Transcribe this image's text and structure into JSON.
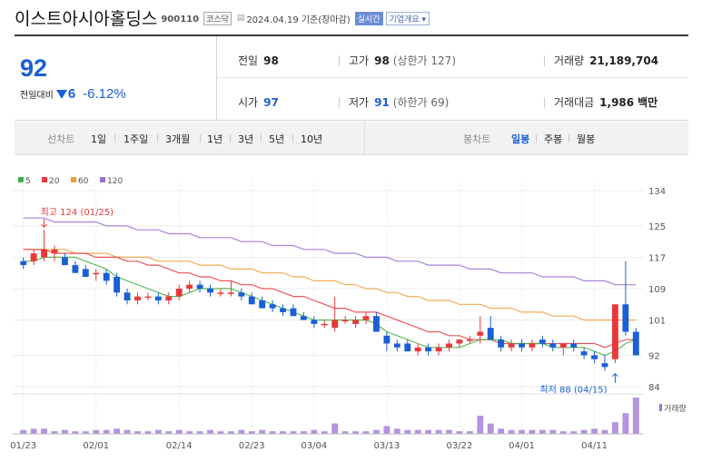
{
  "header": {
    "company_name": "이스트아시아홀딩스",
    "code": "900110",
    "market": "코스닥",
    "date": "2024.04.19 기준(장마감)",
    "realtime_label": "실시간",
    "company_info_label": "기업개요"
  },
  "summary": {
    "price": "92",
    "change_label": "전일대비",
    "change": "6",
    "change_pct": "-6.12%",
    "prev_close_label": "전일",
    "prev_close": "98",
    "high_label": "고가",
    "high": "98",
    "upper_limit": "(상한가 127)",
    "volume_label": "거래량",
    "volume": "21,189,704",
    "open_label": "시가",
    "open": "97",
    "low_label": "저가",
    "low": "91",
    "lower_limit": "(하한가 69)",
    "amount_label": "거래대금",
    "amount": "1,986",
    "amount_unit": "백만"
  },
  "tabs": {
    "line_chart": "선차트",
    "periods": [
      "1일",
      "1주일",
      "3개월",
      "1년",
      "3년",
      "5년",
      "10년"
    ],
    "candle_chart": "봉차트",
    "candle_periods": [
      "일봉",
      "주봉",
      "월봉"
    ],
    "selected_candle": "일봉"
  },
  "colors": {
    "up": "#e8383b",
    "down": "#1b5fd6",
    "ma5": "#3cb043",
    "ma20": "#e8383b",
    "ma60": "#f39c3a",
    "ma120": "#9b6fd6",
    "volume": "#9b6fd6"
  },
  "chart_data": {
    "type": "candlestick",
    "legend": [
      {
        "name": "5",
        "color": "#3cb043"
      },
      {
        "name": "20",
        "color": "#e8383b"
      },
      {
        "name": "60",
        "color": "#f39c3a"
      },
      {
        "name": "120",
        "color": "#9b6fd6"
      }
    ],
    "y_ticks": [
      84,
      92,
      101,
      109,
      117,
      125,
      134
    ],
    "ylim": [
      84,
      134
    ],
    "x_ticks": [
      {
        "label": "01/23",
        "index": 0
      },
      {
        "label": "02/01",
        "index": 7
      },
      {
        "label": "02/14",
        "index": 15
      },
      {
        "label": "02/23",
        "index": 22
      },
      {
        "label": "03/04",
        "index": 28
      },
      {
        "label": "03/13",
        "index": 35
      },
      {
        "label": "03/22",
        "index": 42
      },
      {
        "label": "04/01",
        "index": 48
      },
      {
        "label": "04/11",
        "index": 55
      }
    ],
    "annotations": {
      "high": {
        "text": "최고 124 (01/25)",
        "index": 2,
        "value": 124
      },
      "low": {
        "text": "최저 88 (04/15)",
        "index": 57,
        "value": 88
      }
    },
    "volume_label": "거래량",
    "candles": [
      {
        "date": "01/23",
        "o": 116,
        "h": 117,
        "l": 114,
        "c": 115
      },
      {
        "date": "01/24",
        "o": 116,
        "h": 119,
        "l": 115,
        "c": 118
      },
      {
        "date": "01/25",
        "o": 117,
        "h": 124,
        "l": 116,
        "c": 119
      },
      {
        "date": "01/26",
        "o": 118,
        "h": 120,
        "l": 116,
        "c": 119
      },
      {
        "date": "01/29",
        "o": 117,
        "h": 118,
        "l": 115,
        "c": 115
      },
      {
        "date": "01/30",
        "o": 115,
        "h": 116,
        "l": 113,
        "c": 113
      },
      {
        "date": "01/31",
        "o": 114,
        "h": 115,
        "l": 112,
        "c": 112
      },
      {
        "date": "02/01",
        "o": 113,
        "h": 114,
        "l": 111,
        "c": 113
      },
      {
        "date": "02/02",
        "o": 113,
        "h": 114,
        "l": 110,
        "c": 111
      },
      {
        "date": "02/05",
        "o": 112,
        "h": 113,
        "l": 107,
        "c": 108
      },
      {
        "date": "02/06",
        "o": 108,
        "h": 109,
        "l": 105,
        "c": 106
      },
      {
        "date": "02/07",
        "o": 106,
        "h": 108,
        "l": 105,
        "c": 107
      },
      {
        "date": "02/08",
        "o": 107,
        "h": 108,
        "l": 106,
        "c": 107
      },
      {
        "date": "02/13",
        "o": 107,
        "h": 108,
        "l": 105,
        "c": 106
      },
      {
        "date": "02/14",
        "o": 106,
        "h": 108,
        "l": 105,
        "c": 107
      },
      {
        "date": "02/15",
        "o": 107,
        "h": 110,
        "l": 106,
        "c": 109
      },
      {
        "date": "02/16",
        "o": 109,
        "h": 111,
        "l": 108,
        "c": 110
      },
      {
        "date": "02/19",
        "o": 110,
        "h": 111,
        "l": 108,
        "c": 109
      },
      {
        "date": "02/20",
        "o": 109,
        "h": 110,
        "l": 107,
        "c": 108
      },
      {
        "date": "02/21",
        "o": 108,
        "h": 109,
        "l": 107,
        "c": 108
      },
      {
        "date": "02/22",
        "o": 108,
        "h": 111,
        "l": 107,
        "c": 108
      },
      {
        "date": "02/23",
        "o": 108,
        "h": 109,
        "l": 106,
        "c": 107
      },
      {
        "date": "02/26",
        "o": 107,
        "h": 108,
        "l": 105,
        "c": 105
      },
      {
        "date": "02/27",
        "o": 106,
        "h": 107,
        "l": 104,
        "c": 104
      },
      {
        "date": "02/28",
        "o": 105,
        "h": 106,
        "l": 103,
        "c": 104
      },
      {
        "date": "02/29",
        "o": 104,
        "h": 105,
        "l": 102,
        "c": 103
      },
      {
        "date": "03/01",
        "o": 104,
        "h": 105,
        "l": 102,
        "c": 102
      },
      {
        "date": "03/04",
        "o": 102,
        "h": 103,
        "l": 101,
        "c": 101
      },
      {
        "date": "03/05",
        "o": 101,
        "h": 102,
        "l": 99,
        "c": 100
      },
      {
        "date": "03/06",
        "o": 100,
        "h": 101,
        "l": 99,
        "c": 100
      },
      {
        "date": "03/07",
        "o": 99,
        "h": 107,
        "l": 98,
        "c": 101
      },
      {
        "date": "03/08",
        "o": 101,
        "h": 102,
        "l": 100,
        "c": 101
      },
      {
        "date": "03/11",
        "o": 100,
        "h": 102,
        "l": 99,
        "c": 101
      },
      {
        "date": "03/12",
        "o": 101,
        "h": 103,
        "l": 100,
        "c": 102
      },
      {
        "date": "03/13",
        "o": 102,
        "h": 103,
        "l": 98,
        "c": 98
      },
      {
        "date": "03/14",
        "o": 97,
        "h": 98,
        "l": 93,
        "c": 95
      },
      {
        "date": "03/15",
        "o": 95,
        "h": 96,
        "l": 93,
        "c": 94
      },
      {
        "date": "03/18",
        "o": 95,
        "h": 96,
        "l": 93,
        "c": 93
      },
      {
        "date": "03/19",
        "o": 93,
        "h": 95,
        "l": 92,
        "c": 94
      },
      {
        "date": "03/20",
        "o": 94,
        "h": 95,
        "l": 92,
        "c": 93
      },
      {
        "date": "03/21",
        "o": 93,
        "h": 95,
        "l": 92,
        "c": 94
      },
      {
        "date": "03/22",
        "o": 94,
        "h": 96,
        "l": 93,
        "c": 95
      },
      {
        "date": "03/25",
        "o": 95,
        "h": 96,
        "l": 94,
        "c": 96
      },
      {
        "date": "03/26",
        "o": 96,
        "h": 97,
        "l": 95,
        "c": 96
      },
      {
        "date": "03/27",
        "o": 97,
        "h": 102,
        "l": 95,
        "c": 98
      },
      {
        "date": "03/28",
        "o": 99,
        "h": 102,
        "l": 96,
        "c": 96
      },
      {
        "date": "03/29",
        "o": 96,
        "h": 97,
        "l": 93,
        "c": 94
      },
      {
        "date": "04/01",
        "o": 94,
        "h": 96,
        "l": 93,
        "c": 95
      },
      {
        "date": "04/02",
        "o": 95,
        "h": 96,
        "l": 93,
        "c": 94
      },
      {
        "date": "04/03",
        "o": 94,
        "h": 96,
        "l": 93,
        "c": 95
      },
      {
        "date": "04/04",
        "o": 96,
        "h": 97,
        "l": 94,
        "c": 95
      },
      {
        "date": "04/05",
        "o": 95,
        "h": 96,
        "l": 93,
        "c": 94
      },
      {
        "date": "04/08",
        "o": 94,
        "h": 95,
        "l": 92,
        "c": 95
      },
      {
        "date": "04/09",
        "o": 95,
        "h": 96,
        "l": 93,
        "c": 94
      },
      {
        "date": "04/11",
        "o": 93,
        "h": 94,
        "l": 91,
        "c": 92
      },
      {
        "date": "04/12",
        "o": 92,
        "h": 93,
        "l": 90,
        "c": 91
      },
      {
        "date": "04/15",
        "o": 90,
        "h": 92,
        "l": 88,
        "c": 89
      },
      {
        "date": "04/16",
        "o": 91,
        "h": 105,
        "l": 90,
        "c": 105
      },
      {
        "date": "04/17",
        "o": 105,
        "h": 116,
        "l": 97,
        "c": 98
      },
      {
        "date": "04/18",
        "o": 98,
        "h": 99,
        "l": 92,
        "c": 92
      }
    ],
    "ma": {
      "5": [
        116,
        116,
        117,
        117,
        117,
        117,
        116,
        115,
        114,
        112,
        111,
        110,
        109,
        108,
        107,
        107,
        108,
        109,
        109,
        109,
        109,
        108,
        107,
        106,
        105,
        104,
        103,
        102,
        101,
        101,
        101,
        101,
        101,
        101,
        100,
        98,
        97,
        96,
        95,
        94,
        94,
        94,
        94,
        95,
        96,
        96,
        96,
        95,
        95,
        95,
        95,
        94,
        94,
        94,
        94,
        93,
        92,
        93,
        95,
        96
      ],
      "20": [
        119,
        119,
        119,
        118,
        118,
        118,
        118,
        117,
        117,
        117,
        116,
        116,
        115,
        115,
        114,
        113,
        113,
        112,
        112,
        111,
        111,
        110,
        110,
        109,
        109,
        108,
        107,
        107,
        106,
        105,
        104,
        104,
        103,
        103,
        103,
        102,
        101,
        100,
        99,
        98,
        98,
        97,
        97,
        96,
        96,
        96,
        95,
        95,
        95,
        95,
        95,
        95,
        95,
        95,
        95,
        95,
        94,
        95,
        96,
        96
      ],
      "60": [
        119,
        119,
        119,
        119,
        119,
        118,
        118,
        118,
        118,
        117,
        117,
        117,
        117,
        116,
        116,
        116,
        116,
        115,
        115,
        115,
        114,
        114,
        114,
        113,
        113,
        113,
        112,
        112,
        111,
        111,
        111,
        110,
        110,
        109,
        109,
        108,
        108,
        107,
        107,
        106,
        106,
        106,
        105,
        105,
        105,
        104,
        104,
        104,
        103,
        103,
        103,
        102,
        102,
        102,
        101,
        101,
        101,
        101,
        101,
        101
      ],
      "120": [
        127,
        127,
        127,
        126,
        126,
        126,
        126,
        126,
        125,
        125,
        125,
        124,
        124,
        124,
        123,
        123,
        123,
        122,
        122,
        122,
        122,
        121,
        121,
        121,
        120,
        120,
        120,
        119,
        119,
        119,
        118,
        118,
        118,
        117,
        117,
        117,
        116,
        116,
        116,
        115,
        115,
        115,
        115,
        114,
        114,
        114,
        113,
        113,
        113,
        113,
        112,
        112,
        112,
        112,
        111,
        111,
        111,
        110,
        110,
        110
      ]
    },
    "volume": [
      3,
      4,
      4,
      2,
      3,
      2,
      2,
      3,
      3,
      4,
      3,
      2,
      2,
      3,
      2,
      3,
      2,
      2,
      3,
      2,
      2,
      3,
      2,
      3,
      2,
      2,
      2,
      2,
      3,
      2,
      8,
      2,
      2,
      2,
      3,
      6,
      4,
      3,
      3,
      3,
      3,
      3,
      2,
      2,
      14,
      8,
      4,
      3,
      3,
      3,
      3,
      3,
      2,
      2,
      3,
      4,
      3,
      9,
      16,
      28
    ]
  }
}
